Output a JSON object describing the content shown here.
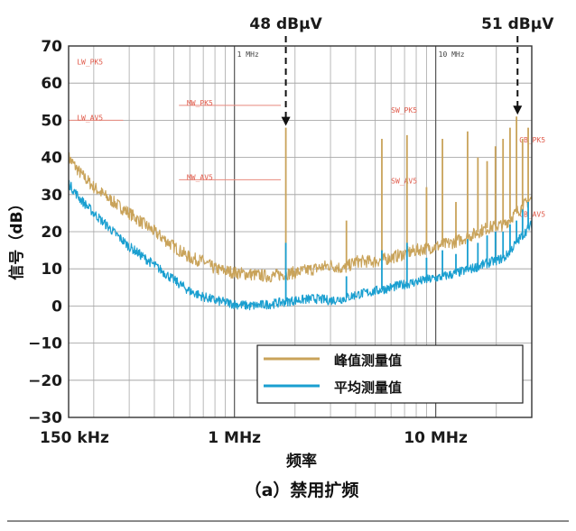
{
  "chart_data": {
    "type": "line",
    "ylabel": "信号（dB）",
    "xlabel": "频率",
    "caption": "（a）禁用扩频",
    "xscale": "log",
    "xlim_mhz": [
      0.15,
      30
    ],
    "ylim": [
      -30,
      70
    ],
    "grid": true,
    "yticks": [
      70,
      60,
      50,
      40,
      30,
      20,
      10,
      0,
      -10,
      -20,
      -30
    ],
    "ytick_labels": [
      "70",
      "60",
      "50",
      "40",
      "30",
      "20",
      "10",
      "0",
      "−10",
      "−20",
      "−30"
    ],
    "xticks": [
      {
        "label": "150 kHz",
        "mhz": 0.15
      },
      {
        "label": "1 MHz",
        "mhz": 1
      },
      {
        "label": "10 MHz",
        "mhz": 10
      }
    ],
    "inner_freq_labels": [
      {
        "text": "1 MHz",
        "mhz": 1
      },
      {
        "text": "10 MHz",
        "mhz": 10
      }
    ],
    "legend": {
      "position": "bottom-right",
      "entries": [
        {
          "name": "峰值测量值",
          "color": "#c9a35a"
        },
        {
          "name": "平均测量值",
          "color": "#1a9fd0"
        }
      ]
    },
    "annotations": [
      {
        "text": "48 dBµV",
        "mhz": 1.8,
        "y": 48
      },
      {
        "text": "51 dBµV",
        "mhz": 25.5,
        "y": 51
      }
    ],
    "limit_labels": [
      {
        "text": "LW_PK5",
        "mhz": 0.165,
        "y": 65
      },
      {
        "text": "LW_AV5",
        "mhz": 0.165,
        "y": 50
      },
      {
        "text": "MW_PK5",
        "mhz": 0.58,
        "y": 54
      },
      {
        "text": "MW_AV5",
        "mhz": 0.58,
        "y": 34
      },
      {
        "text": "SW_PK5",
        "mhz": 6.0,
        "y": 52
      },
      {
        "text": "SW_AV5",
        "mhz": 6.0,
        "y": 33
      },
      {
        "text": "CB_PK5",
        "mhz": 26,
        "y": 44
      },
      {
        "text": "CB_AV5",
        "mhz": 26,
        "y": 24
      }
    ],
    "limit_segments": [
      {
        "from_mhz": 0.15,
        "to_mhz": 0.28,
        "y": 50
      },
      {
        "from_mhz": 0.53,
        "to_mhz": 1.7,
        "y": 54
      },
      {
        "from_mhz": 0.53,
        "to_mhz": 1.7,
        "y": 34
      }
    ],
    "series": [
      {
        "name": "峰值测量值",
        "color": "#c9a35a",
        "x": [
          0.15,
          0.17,
          0.2,
          0.25,
          0.3,
          0.4,
          0.5,
          0.6,
          0.7,
          0.8,
          1.0,
          1.2,
          1.5,
          2.0,
          2.5,
          3.0,
          3.5,
          4.0,
          5.0,
          6.0,
          8.0,
          10,
          12,
          15,
          18,
          22,
          26,
          30
        ],
        "values": [
          40,
          36,
          32,
          28,
          25,
          20,
          16,
          13,
          12,
          10,
          9,
          8.5,
          8,
          9,
          10,
          11,
          10,
          12,
          12,
          13,
          15,
          16,
          17,
          19,
          21,
          22,
          26,
          29
        ]
      },
      {
        "name": "平均测量值",
        "color": "#1a9fd0",
        "x": [
          0.15,
          0.17,
          0.2,
          0.25,
          0.3,
          0.4,
          0.5,
          0.6,
          0.7,
          0.8,
          1.0,
          1.2,
          1.5,
          2.0,
          2.5,
          3.0,
          3.5,
          4.0,
          5.0,
          6.0,
          8.0,
          10,
          12,
          15,
          18,
          22,
          26,
          30
        ],
        "values": [
          33,
          29,
          25,
          20,
          16,
          11,
          7,
          4,
          2.5,
          1.5,
          0.5,
          0,
          0.5,
          1.5,
          2,
          1.5,
          2,
          3,
          4,
          5,
          6.5,
          7.5,
          8.5,
          10,
          11.5,
          13,
          18,
          22
        ]
      }
    ],
    "spikes": [
      {
        "mhz": 1.8,
        "peak": 48,
        "avg": 17
      },
      {
        "mhz": 3.6,
        "peak": 23,
        "avg": 8
      },
      {
        "mhz": 5.4,
        "peak": 45,
        "avg": 15
      },
      {
        "mhz": 7.2,
        "peak": 46,
        "avg": 17
      },
      {
        "mhz": 9.0,
        "peak": 32,
        "avg": 13
      },
      {
        "mhz": 10.8,
        "peak": 45,
        "avg": 15
      },
      {
        "mhz": 12.6,
        "peak": 28,
        "avg": 14
      },
      {
        "mhz": 14.4,
        "peak": 47,
        "avg": 18
      },
      {
        "mhz": 16.2,
        "peak": 40,
        "avg": 17
      },
      {
        "mhz": 18.0,
        "peak": 39,
        "avg": 19
      },
      {
        "mhz": 19.8,
        "peak": 43,
        "avg": 20
      },
      {
        "mhz": 21.6,
        "peak": 45,
        "avg": 20
      },
      {
        "mhz": 23.4,
        "peak": 48,
        "avg": 22
      },
      {
        "mhz": 25.2,
        "peak": 51,
        "avg": 23
      },
      {
        "mhz": 27.0,
        "peak": 45,
        "avg": 26
      },
      {
        "mhz": 28.8,
        "peak": 48,
        "avg": 28
      }
    ]
  }
}
